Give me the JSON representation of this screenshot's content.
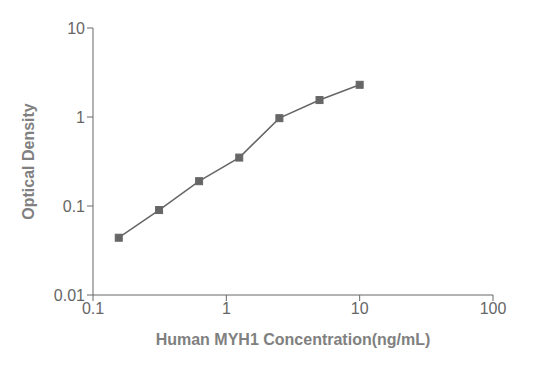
{
  "chart_data": {
    "type": "line",
    "xlabel": "Human MYH1 Concentration(ng/mL)",
    "ylabel": "Optical Density",
    "x": [
      0.156,
      0.313,
      0.625,
      1.25,
      2.5,
      5.0,
      10.0
    ],
    "values": [
      0.044,
      0.09,
      0.19,
      0.35,
      0.97,
      1.55,
      2.3
    ],
    "xlim": [
      0.1,
      100
    ],
    "ylim": [
      0.01,
      10
    ],
    "xticks": [
      0.1,
      1,
      10,
      100
    ],
    "yticks": [
      0.01,
      0.1,
      1,
      10
    ],
    "log": true,
    "color": "#666666",
    "marker": "square"
  }
}
